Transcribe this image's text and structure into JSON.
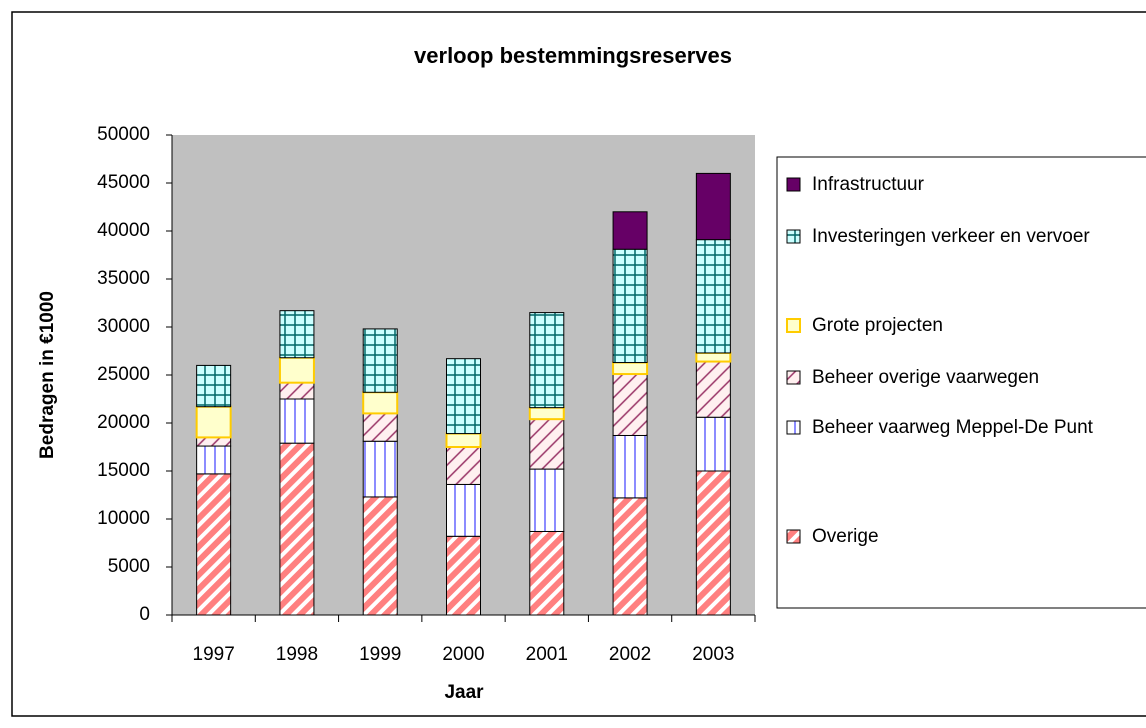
{
  "chart_data": {
    "type": "stacked_bar",
    "title": "verloop bestemmingsreserves",
    "x_label": "Jaar",
    "y_label": "Bedragen in €1000",
    "categories": [
      "1997",
      "1998",
      "1999",
      "2000",
      "2001",
      "2002",
      "2003"
    ],
    "series": [
      {
        "name": "Overige",
        "color": "#ff8080",
        "values": [
          14700,
          17900,
          12300,
          8200,
          8700,
          12200,
          15000
        ]
      },
      {
        "name": "Beheer vaarweg Meppel-De Punt",
        "color": "#6666ff",
        "values": [
          2900,
          4600,
          5800,
          5400,
          6500,
          6500,
          5600
        ]
      },
      {
        "name": "Beheer overige vaarwegen",
        "color": "#993366",
        "values": [
          900,
          1700,
          2900,
          3900,
          5200,
          6400,
          5800
        ]
      },
      {
        "name": "Grote projecten",
        "color": "#ffcc00",
        "values": [
          3200,
          2600,
          2200,
          1400,
          1200,
          1200,
          900
        ]
      },
      {
        "name": "Investeringen verkeer en vervoer",
        "color": "#006666",
        "values": [
          4300,
          4900,
          6600,
          7800,
          9900,
          11800,
          11800
        ]
      },
      {
        "name": "Infrastructuur",
        "color": "#660066",
        "values": [
          0,
          0,
          0,
          0,
          0,
          3900,
          6900
        ]
      }
    ],
    "ylim": [
      0,
      50000
    ],
    "yticks": [
      0,
      5000,
      10000,
      15000,
      20000,
      25000,
      30000,
      35000,
      40000,
      45000,
      50000
    ],
    "legend": "right"
  }
}
